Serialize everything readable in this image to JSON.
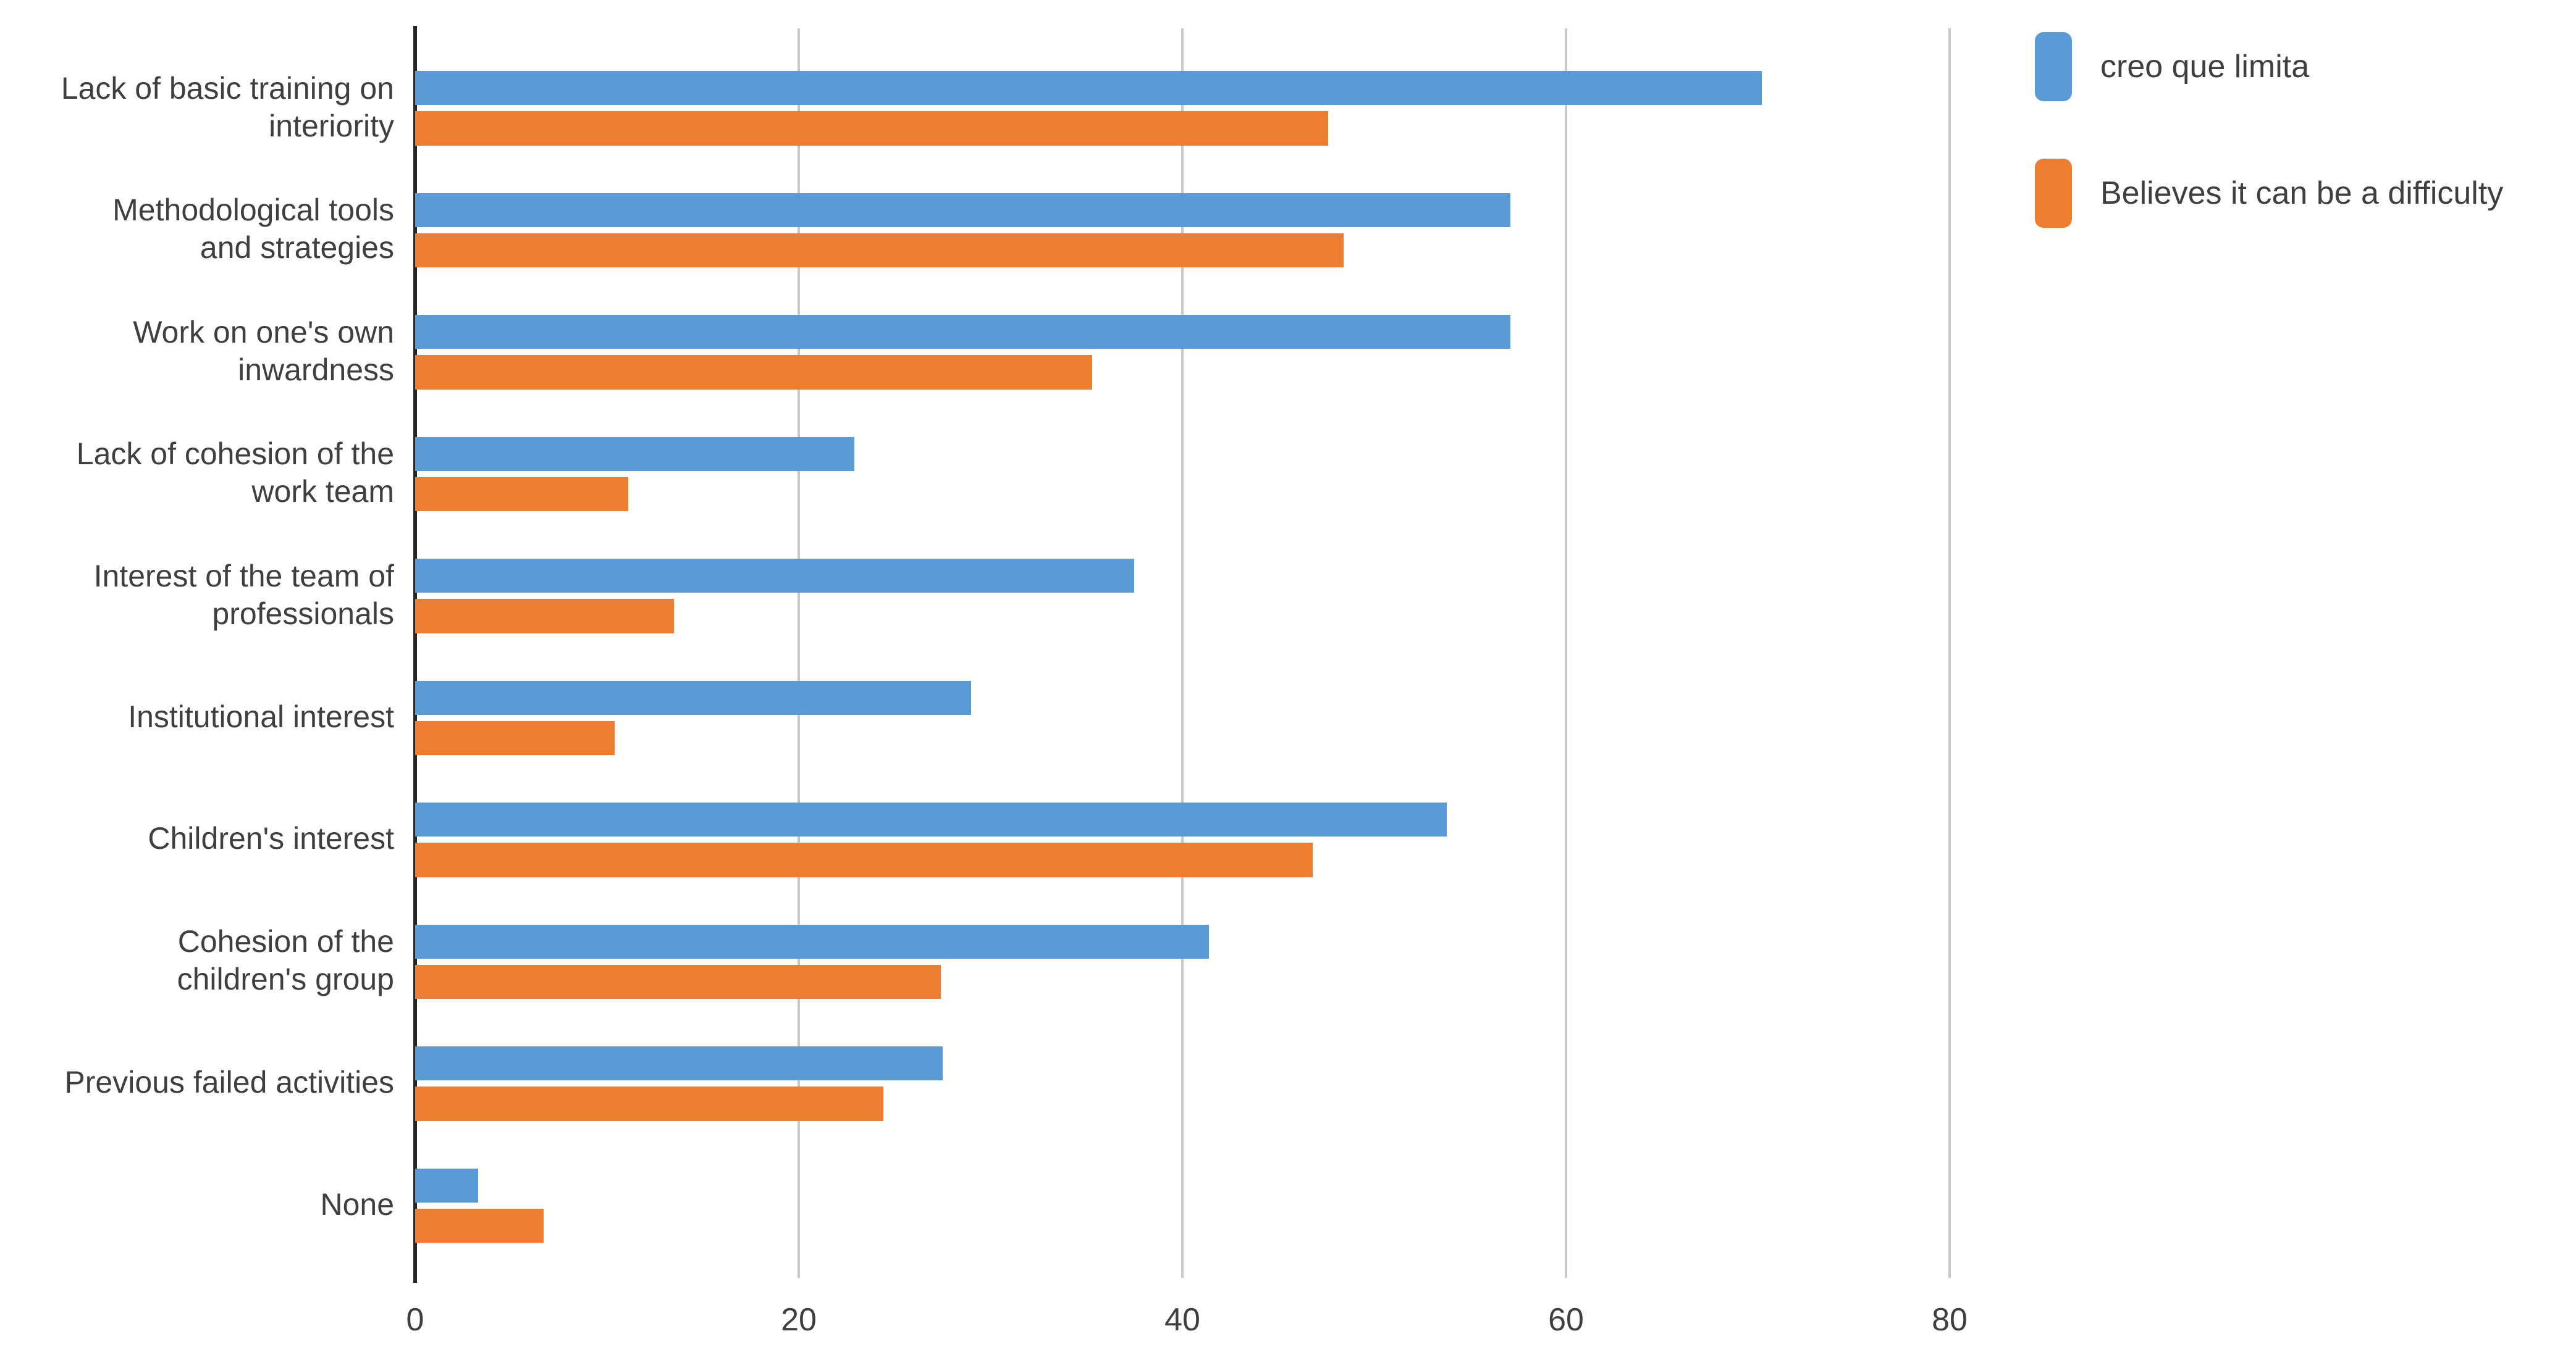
{
  "chart_data": {
    "type": "bar",
    "orientation": "horizontal",
    "title": "",
    "xlabel": "",
    "ylabel": "",
    "grid": "vertical-only",
    "legend_position": "top-right",
    "categories": [
      "Lack of basic training on\ninteriority",
      "Methodological tools\nand strategies",
      "Work on one's own\ninwardness",
      "Lack of cohesion of the\nwork team",
      "Interest of the team of\nprofessionals",
      "Institutional interest",
      "Children's interest",
      "Cohesion of the\nchildren's group",
      "Previous failed activities",
      "None"
    ],
    "series": [
      {
        "name": "creo que limita",
        "color": "#5B9BD5",
        "values": [
          70.2,
          57.1,
          57.1,
          22.9,
          37.5,
          29.0,
          53.8,
          41.4,
          27.5,
          3.3
        ]
      },
      {
        "name": "Believes it can be a difficulty",
        "color": "#ED7D31",
        "values": [
          47.6,
          48.4,
          35.3,
          11.1,
          13.5,
          10.4,
          46.8,
          27.4,
          24.4,
          6.7
        ]
      }
    ],
    "x_axis": {
      "ticks": [
        0,
        20,
        40,
        60,
        80
      ],
      "tick_labels": [
        "0",
        "20",
        "40",
        "60",
        "80"
      ],
      "min": 0,
      "max": 84
    }
  },
  "colors": {
    "series_blue": "#5B9BD5",
    "series_orange": "#ED7D31",
    "gridline": "#c9c9c9",
    "axis_line": "#262626",
    "text": "#3f3f3f",
    "background": "#ffffff"
  }
}
